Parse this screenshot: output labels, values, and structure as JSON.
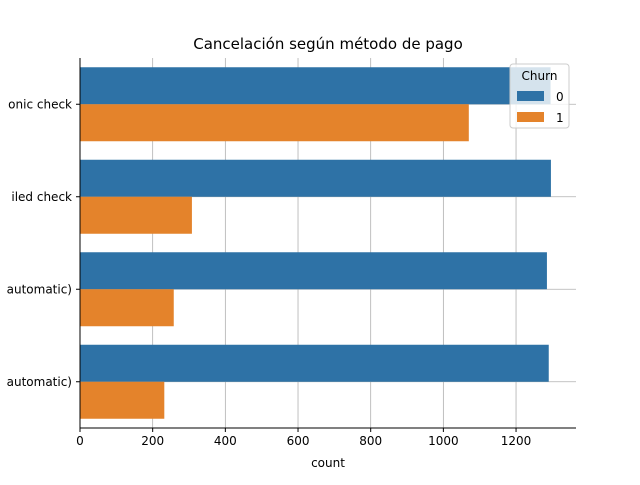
{
  "chart_data": {
    "type": "bar",
    "orientation": "horizontal",
    "title": "Cancelación según método de pago",
    "xlabel": "count",
    "ylabel": "",
    "categories": [
      "onic check",
      "iled check",
      "automatic)",
      "automatic)"
    ],
    "series": [
      {
        "name": "0",
        "color": "#2e72a6",
        "values": [
          1295,
          1296,
          1285,
          1290
        ]
      },
      {
        "name": "1",
        "color": "#e4832b",
        "values": [
          1070,
          308,
          258,
          232
        ]
      }
    ],
    "xlim": [
      0,
      1365
    ],
    "x_ticks": [
      0,
      200,
      400,
      600,
      800,
      1000,
      1200
    ],
    "grid": true,
    "legend": {
      "title": "Churn",
      "placement": "top-right"
    }
  }
}
